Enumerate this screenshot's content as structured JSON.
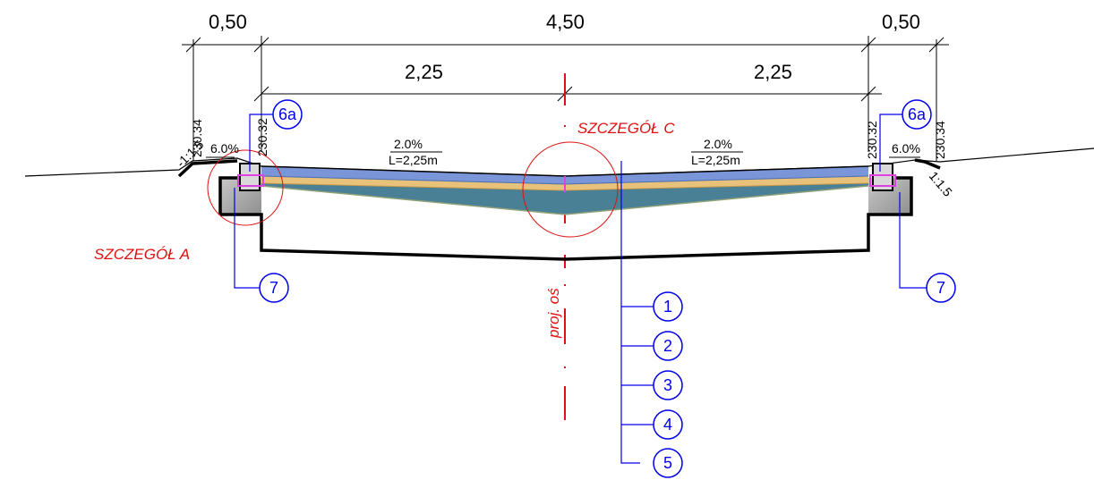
{
  "dimensions": {
    "left_width": "0,50",
    "total_width": "4,50",
    "right_width": "0,50",
    "left_half": "2,25",
    "right_half": "2,25"
  },
  "elevations": {
    "left_outer": "230.34",
    "left_inner": "230.32",
    "right_inner": "230.32",
    "right_outer": "230.34"
  },
  "slopes": {
    "left_embankment": "1:1.5",
    "right_embankment": "1:1.5",
    "left_shoulder": "6.0%",
    "right_shoulder": "6.0%",
    "left_cross": "2.0%",
    "left_length": "L=2,25m",
    "right_cross": "2.0%",
    "right_length": "L=2,25m"
  },
  "details": {
    "detail_a": "SZCZEGÓŁ A",
    "detail_c": "SZCZEGÓŁ C",
    "axis_label": "proj. oś"
  },
  "callouts": {
    "left_6a": "6a",
    "right_6a": "6a",
    "left_7": "7",
    "right_7": "7",
    "layers": [
      "1",
      "2",
      "3",
      "4",
      "5"
    ]
  },
  "colors": {
    "dimension_lines": "#000000",
    "axis": "#e01010",
    "callouts": "#0000ee",
    "wearing_course": "#7a95d8",
    "binder_course": "#e8c27a",
    "base_course": "#4a8096",
    "curb": "#e040e0",
    "foundation": "#b0b0b0"
  }
}
